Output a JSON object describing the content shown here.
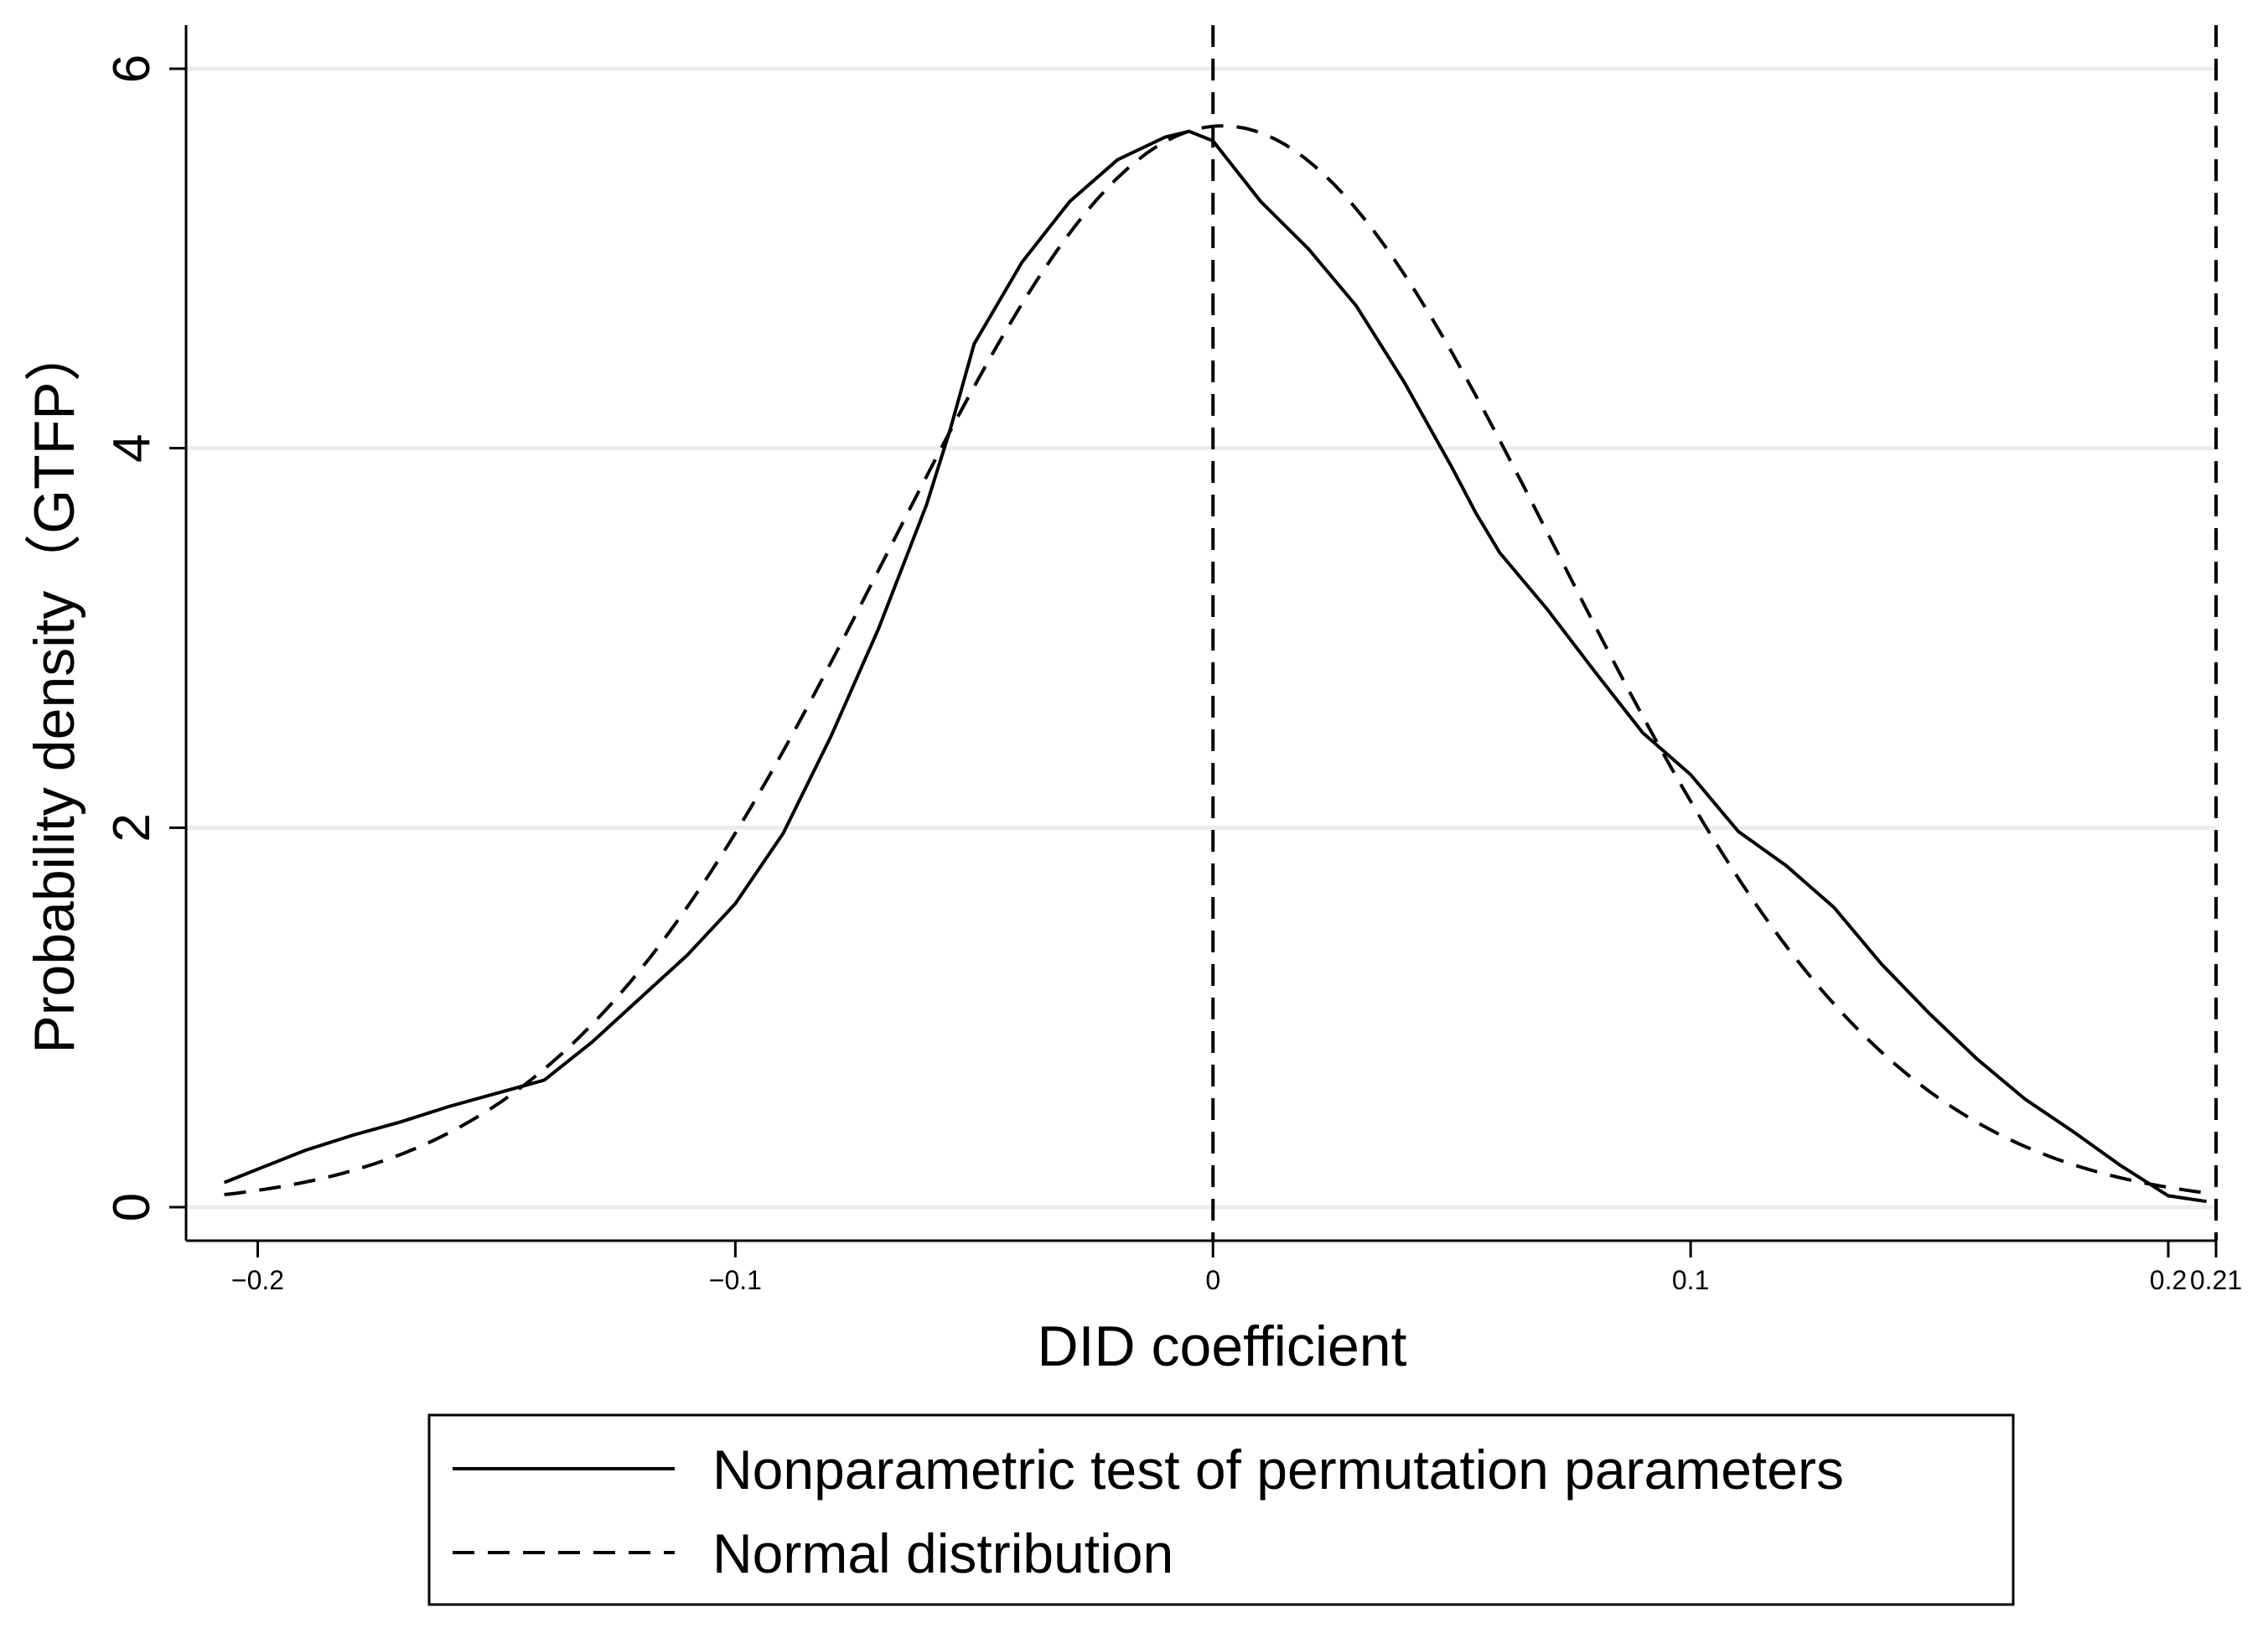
{
  "chart_data": {
    "type": "line",
    "title": "",
    "xlabel": "DID coefficient",
    "ylabel": "Probability density（GTFP）",
    "xlim": [
      -0.215,
      0.21
    ],
    "ylim": [
      0,
      6
    ],
    "x_ticks": [
      {
        "value": -0.2,
        "label": "−0.2"
      },
      {
        "value": -0.1,
        "label": "−0.1"
      },
      {
        "value": 0,
        "label": "0"
      },
      {
        "value": 0.1,
        "label": "0.1"
      },
      {
        "value": 0.2,
        "label": "0.2"
      },
      {
        "value": 0.21,
        "label": "0.21"
      }
    ],
    "y_ticks": [
      {
        "value": 0,
        "label": "0"
      },
      {
        "value": 2,
        "label": "2"
      },
      {
        "value": 4,
        "label": "4"
      },
      {
        "value": 6,
        "label": "6"
      }
    ],
    "grid_y": true,
    "reference_lines_x": [
      0,
      0.21
    ],
    "legend_position": "bottom",
    "series": [
      {
        "name": "Nonparametric test of permutation parameters",
        "style": "solid",
        "x": [
          -0.207,
          -0.2,
          -0.19,
          -0.18,
          -0.17,
          -0.16,
          -0.15,
          -0.14,
          -0.13,
          -0.12,
          -0.11,
          -0.1,
          -0.09,
          -0.08,
          -0.07,
          -0.06,
          -0.055,
          -0.05,
          -0.04,
          -0.03,
          -0.02,
          -0.01,
          -0.005,
          0,
          0.01,
          0.02,
          0.03,
          0.04,
          0.05,
          0.055,
          0.06,
          0.07,
          0.08,
          0.09,
          0.1,
          0.11,
          0.12,
          0.13,
          0.14,
          0.15,
          0.16,
          0.17,
          0.18,
          0.19,
          0.2,
          0.208
        ],
        "y": [
          0.13,
          0.2,
          0.3,
          0.38,
          0.45,
          0.53,
          0.6,
          0.67,
          0.87,
          1.1,
          1.33,
          1.6,
          1.97,
          2.48,
          3.05,
          3.7,
          4.1,
          4.55,
          4.98,
          5.3,
          5.52,
          5.64,
          5.67,
          5.62,
          5.3,
          5.05,
          4.75,
          4.35,
          3.9,
          3.66,
          3.45,
          3.15,
          2.82,
          2.5,
          2.28,
          1.98,
          1.8,
          1.58,
          1.28,
          1.02,
          0.78,
          0.57,
          0.4,
          0.22,
          0.06,
          0.03
        ]
      },
      {
        "name": "Normal distribution",
        "style": "dashed",
        "mean": 0.002,
        "sd": 0.07,
        "x_range": [
          -0.207,
          0.208
        ]
      }
    ]
  },
  "legend": {
    "items": [
      {
        "label": "Nonparametric test of permutation parameters",
        "style": "solid"
      },
      {
        "label": "Normal distribution",
        "style": "dashed"
      }
    ]
  }
}
